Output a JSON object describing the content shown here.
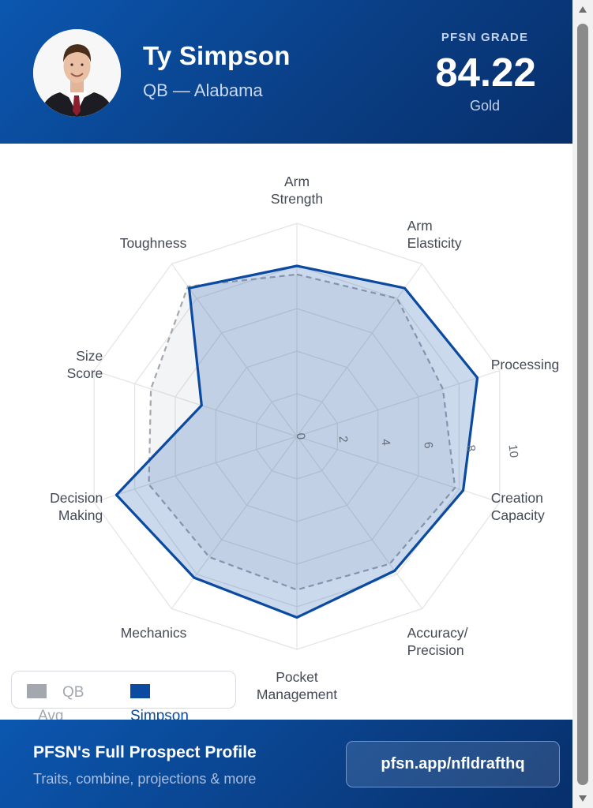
{
  "player": {
    "name": "Ty Simpson",
    "subtitle": "QB — Alabama"
  },
  "grade": {
    "label": "PFSN GRADE",
    "value": "84.22",
    "tier": "Gold"
  },
  "chart_data": {
    "type": "radar",
    "axes": [
      "Arm Strength",
      "Arm Elasticity",
      "Processing",
      "Creation Capacity",
      "Accuracy/ Precision",
      "Pocket Management",
      "Mechanics",
      "Decision Making",
      "Size Score",
      "Toughness"
    ],
    "axis_lines": [
      [
        "Arm",
        "Strength"
      ],
      [
        "Arm",
        "Elasticity"
      ],
      [
        "Processing"
      ],
      [
        "Creation",
        "Capacity"
      ],
      [
        "Accuracy/",
        "Precision"
      ],
      [
        "Pocket",
        "Management"
      ],
      [
        "Mechanics"
      ],
      [
        "Decision",
        "Making"
      ],
      [
        "Size",
        "Score"
      ],
      [
        "Toughness"
      ]
    ],
    "r_range": [
      0,
      10
    ],
    "r_ticks": [
      "0",
      "2",
      "4",
      "6",
      "8",
      "10"
    ],
    "grid": true,
    "legend_position": "bottom-left",
    "series": [
      {
        "name": "QB Avg",
        "values": [
          7.6,
          8.0,
          7.2,
          7.8,
          7.4,
          7.2,
          7.0,
          7.3,
          7.2,
          8.7
        ],
        "color": "#a4a7ad",
        "style": "dashed"
      },
      {
        "name": "Simpson",
        "values": [
          8.0,
          8.6,
          8.9,
          8.2,
          7.8,
          8.5,
          8.2,
          8.9,
          4.7,
          8.6
        ],
        "color": "#0a4aa0",
        "style": "solid"
      }
    ]
  },
  "legend": {
    "avg_label_1": "QB",
    "avg_label_2": "Avg",
    "player_label": "Simpson"
  },
  "footer": {
    "title": "PFSN's Full Prospect Profile",
    "subtitle": "Traits, combine, projections & more",
    "cta": "pfsn.app/nfldrafthq"
  },
  "colors": {
    "header_blue": "#0a3f86",
    "accent_blue": "#0a4aa0",
    "avg_gray": "#a4a7ad"
  }
}
